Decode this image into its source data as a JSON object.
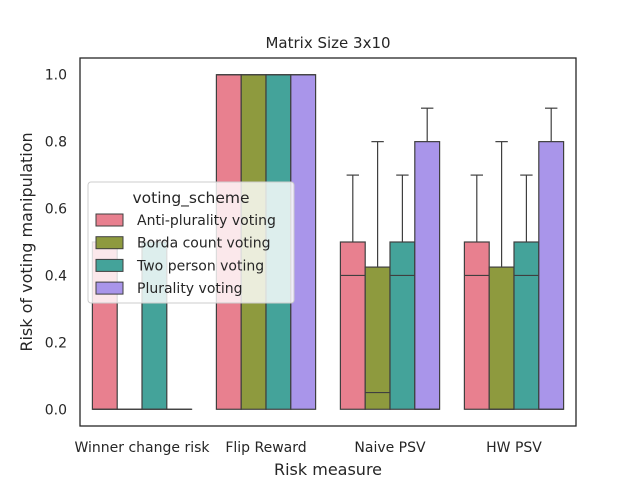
{
  "chart_data": {
    "type": "box",
    "title": "Matrix Size 3x10",
    "xlabel": "Risk measure",
    "ylabel": "Risk of voting manipulation",
    "ylim": [
      -0.05,
      1.05
    ],
    "yticks": [
      "0.0",
      "0.2",
      "0.4",
      "0.6",
      "0.8",
      "1.0"
    ],
    "grid": false,
    "legend_placement": "center-left",
    "legend_title": "voting_scheme",
    "categories": [
      "Winner change risk",
      "Flip Reward",
      "Naive PSV",
      "HW PSV"
    ],
    "series": [
      {
        "name": "Anti-plurality voting",
        "color": "#e8808f",
        "boxes": [
          {
            "whislo": 0.0,
            "q1": 0.0,
            "med": 0.0,
            "q3": 0.5,
            "whishi": 0.5
          },
          {
            "whislo": 0.0,
            "q1": 0.0,
            "med": 1.0,
            "q3": 1.0,
            "whishi": 1.0
          },
          {
            "whislo": 0.0,
            "q1": 0.0,
            "med": 0.4,
            "q3": 0.5,
            "whishi": 0.7
          },
          {
            "whislo": 0.0,
            "q1": 0.0,
            "med": 0.4,
            "q3": 0.5,
            "whishi": 0.7
          }
        ]
      },
      {
        "name": "Borda count voting",
        "color": "#8e9a3e",
        "boxes": [
          {
            "whislo": 0.0,
            "q1": 0.0,
            "med": 0.0,
            "q3": 0.0,
            "whishi": 0.0
          },
          {
            "whislo": 0.0,
            "q1": 0.0,
            "med": 1.0,
            "q3": 1.0,
            "whishi": 1.0
          },
          {
            "whislo": 0.0,
            "q1": 0.0,
            "med": 0.05,
            "q3": 0.425,
            "whishi": 0.8
          },
          {
            "whislo": 0.0,
            "q1": 0.0,
            "med": 0.0,
            "q3": 0.425,
            "whishi": 0.8
          }
        ]
      },
      {
        "name": "Two person voting",
        "color": "#44a39a",
        "boxes": [
          {
            "whislo": 0.0,
            "q1": 0.0,
            "med": 0.0,
            "q3": 0.5,
            "whishi": 0.5
          },
          {
            "whislo": 0.0,
            "q1": 0.0,
            "med": 1.0,
            "q3": 1.0,
            "whishi": 1.0
          },
          {
            "whislo": 0.0,
            "q1": 0.0,
            "med": 0.4,
            "q3": 0.5,
            "whishi": 0.7
          },
          {
            "whislo": 0.0,
            "q1": 0.0,
            "med": 0.4,
            "q3": 0.5,
            "whishi": 0.7
          }
        ]
      },
      {
        "name": "Plurality voting",
        "color": "#a995ea",
        "boxes": [
          {
            "whislo": 0.0,
            "q1": 0.0,
            "med": 0.0,
            "q3": 0.0,
            "whishi": 0.0
          },
          {
            "whislo": 0.0,
            "q1": 0.0,
            "med": 1.0,
            "q3": 1.0,
            "whishi": 1.0
          },
          {
            "whislo": 0.0,
            "q1": 0.0,
            "med": 0.0,
            "q3": 0.8,
            "whishi": 0.9
          },
          {
            "whislo": 0.0,
            "q1": 0.0,
            "med": 0.0,
            "q3": 0.8,
            "whishi": 0.9
          }
        ]
      }
    ]
  }
}
